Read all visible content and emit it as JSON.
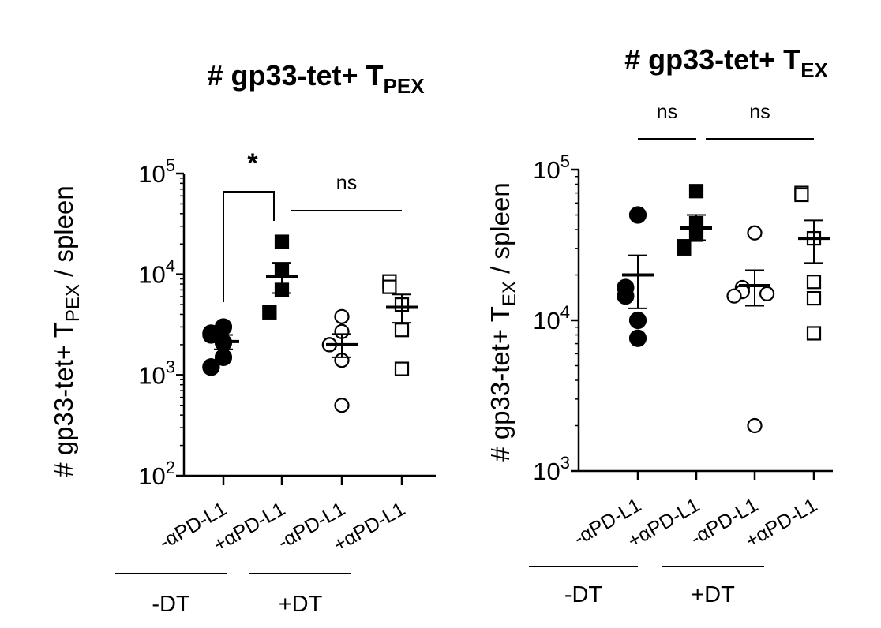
{
  "chart_data": [
    {
      "type": "scatter",
      "title": "# gp33-tet+ T",
      "title_sub": "PEX",
      "ylabel": "# gp33-tet+ T",
      "ylabel_sub": "PEX",
      "ylabel_suffix": " / spleen",
      "yscale": "log",
      "ylim": [
        100,
        100000
      ],
      "yticks": [
        {
          "base": "10",
          "exp": "2",
          "value": 100
        },
        {
          "base": "10",
          "exp": "3",
          "value": 1000
        },
        {
          "base": "10",
          "exp": "4",
          "value": 10000
        },
        {
          "base": "10",
          "exp": "5",
          "value": 100000
        }
      ],
      "categories": [
        "-αPD-L1",
        "+αPD-L1",
        "-αPD-L1",
        "+αPD-L1"
      ],
      "groups": [
        {
          "label": "-DT",
          "categories": [
            0,
            1
          ]
        },
        {
          "label": "+DT",
          "categories": [
            2,
            3
          ]
        }
      ],
      "series": [
        {
          "marker": "filled-circle",
          "points": [
            3000,
            2600,
            2500,
            2100,
            1500,
            1200,
            1200
          ],
          "mean": 2150,
          "sem_low": 1800,
          "sem_high": 2500
        },
        {
          "marker": "filled-square",
          "points": [
            21000,
            11000,
            7000,
            4200,
            4200
          ],
          "mean": 9500,
          "sem_low": 6500,
          "sem_high": 13000
        },
        {
          "marker": "open-circle",
          "points": [
            3800,
            2700,
            2000,
            2000,
            1400,
            500
          ],
          "mean": 2000,
          "sem_low": 1500,
          "sem_high": 2550
        },
        {
          "marker": "open-square",
          "points": [
            8500,
            7500,
            5000,
            2800,
            1150
          ],
          "mean": 4700,
          "sem_low": 3300,
          "sem_high": 6300
        }
      ],
      "comparisons": [
        {
          "label": "*",
          "from": 0,
          "to": 1,
          "style": "bracket"
        },
        {
          "label": "ns",
          "from": 1,
          "to": 3,
          "style": "line"
        }
      ]
    },
    {
      "type": "scatter",
      "title": "# gp33-tet+ T",
      "title_sub": "EX",
      "ylabel": "# gp33-tet+ T",
      "ylabel_sub": "EX",
      "ylabel_suffix": " / spleen",
      "yscale": "log",
      "ylim": [
        1000,
        100000
      ],
      "yticks": [
        {
          "base": "10",
          "exp": "3",
          "value": 1000
        },
        {
          "base": "10",
          "exp": "4",
          "value": 10000
        },
        {
          "base": "10",
          "exp": "5",
          "value": 100000
        }
      ],
      "categories": [
        "-αPD-L1",
        "+αPD-L1",
        "-αPD-L1",
        "+αPD-L1"
      ],
      "groups": [
        {
          "label": "-DT",
          "categories": [
            0,
            1
          ]
        },
        {
          "label": "+DT",
          "categories": [
            2,
            3
          ]
        }
      ],
      "series": [
        {
          "marker": "filled-circle",
          "points": [
            50000,
            16500,
            14500,
            10000,
            7600
          ],
          "mean": 20000,
          "sem_low": 12000,
          "sem_high": 27000
        },
        {
          "marker": "filled-square",
          "points": [
            72000,
            44000,
            37000,
            31000,
            30000
          ],
          "mean": 41000,
          "sem_low": 34000,
          "sem_high": 50000
        },
        {
          "marker": "open-circle",
          "points": [
            38000,
            16500,
            15500,
            15000,
            14500,
            2000
          ],
          "mean": 17000,
          "sem_low": 12500,
          "sem_high": 21500
        },
        {
          "marker": "open-square",
          "points": [
            70000,
            68000,
            35000,
            18000,
            14000,
            8200
          ],
          "mean": 35000,
          "sem_low": 24000,
          "sem_high": 46000
        }
      ],
      "comparisons": [
        {
          "label": "ns",
          "from": 0,
          "to": 1,
          "style": "line"
        },
        {
          "label": "ns",
          "from": 1,
          "to": 3,
          "style": "line"
        }
      ]
    }
  ]
}
